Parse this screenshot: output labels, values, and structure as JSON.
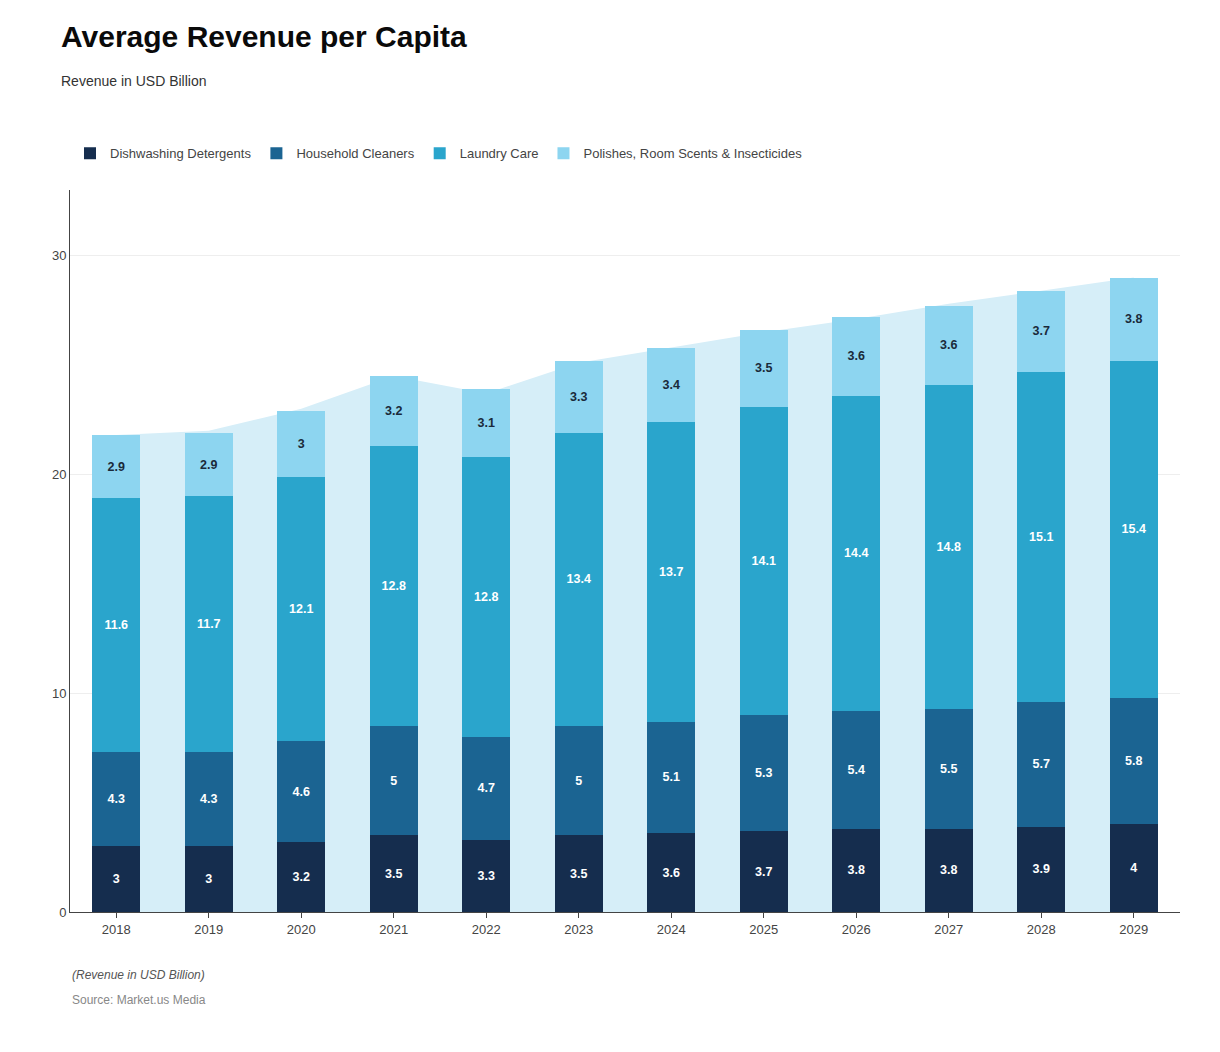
{
  "chart_data": {
    "type": "bar",
    "title": "Average Revenue per Capita",
    "subtitle": "Revenue in USD Billion",
    "annotations": [
      "(Revenue in USD Billion)",
      "Source: Market.us Media"
    ],
    "categories": [
      2018,
      2019,
      2020,
      2021,
      2022,
      2023,
      2024,
      2025,
      2026,
      2027,
      2028,
      2029
    ],
    "series": [
      {
        "type": "area",
        "color": "#d6eef8",
        "values": [
          21.8,
          22.0,
          23.0,
          24.5,
          23.7,
          25.1,
          25.8,
          26.5,
          27.1,
          27.8,
          28.4,
          29.0
        ]
      },
      {
        "name": "Dishwashing Detergents",
        "color": "#152d4e",
        "values": [
          3.0,
          3.0,
          3.2,
          3.5,
          3.3,
          3.5,
          3.6,
          3.7,
          3.8,
          3.8,
          3.9,
          4.0
        ]
      },
      {
        "name": "Household Cleaners",
        "color": "#1b6492",
        "values": [
          4.3,
          4.3,
          4.6,
          5.0,
          4.7,
          5.0,
          5.1,
          5.3,
          5.4,
          5.5,
          5.7,
          5.8
        ]
      },
      {
        "name": "Laundry Care",
        "color": "#2aa5cc",
        "values": [
          11.6,
          11.7,
          12.1,
          12.8,
          12.8,
          13.4,
          13.7,
          14.1,
          14.4,
          14.8,
          15.1,
          15.4
        ]
      },
      {
        "name": "Polishes, Room Scents & Insecticides",
        "color": "#8dd5f0",
        "values": [
          2.9,
          2.9,
          3.0,
          3.2,
          3.1,
          3.3,
          3.4,
          3.5,
          3.6,
          3.6,
          3.7,
          3.8
        ]
      }
    ],
    "stacked": true,
    "data_labels": true,
    "ylim": [
      0,
      33
    ],
    "yticks": [
      0,
      10,
      20,
      30
    ],
    "grid": true,
    "legend": "top"
  }
}
